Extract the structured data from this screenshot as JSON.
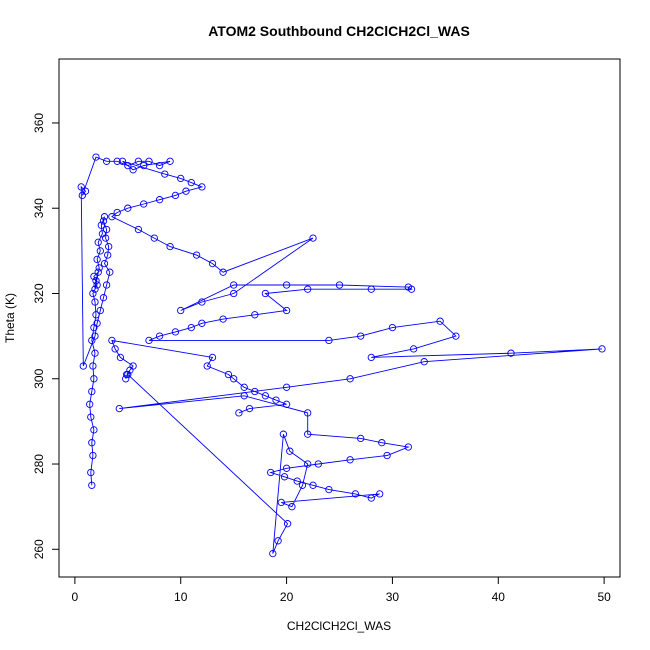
{
  "chart_data": {
    "type": "line",
    "title": "ATOM2 Southbound CH2ClCH2Cl_WAS",
    "xlabel": "CH2ClCH2Cl_WAS",
    "ylabel": "Theta (K)",
    "xlim": [
      -1.5,
      51.5
    ],
    "ylim": [
      253.5,
      375
    ],
    "xticks": [
      0,
      10,
      20,
      30,
      40,
      50
    ],
    "yticks": [
      260,
      280,
      300,
      320,
      340,
      360
    ],
    "xtick_labels": [
      "0",
      "10",
      "20",
      "30",
      "40",
      "50"
    ],
    "ytick_labels": [
      "260",
      "280",
      "300",
      "320",
      "340",
      "360"
    ],
    "grid": false,
    "series_color": "#0000ff",
    "marker": "open-circle",
    "series": [
      {
        "name": "ATOM2 Southbound",
        "x": [
          1.6,
          1.5,
          1.7,
          1.6,
          1.8,
          1.5,
          1.4,
          1.6,
          1.8,
          1.7,
          1.9,
          1.6,
          1.8,
          2.0,
          1.9,
          1.7,
          2.1,
          1.8,
          2.2,
          2.0,
          1.9,
          2.3,
          2.1,
          2.4,
          2.2,
          2.6,
          2.5,
          2.8,
          2.7,
          3.0,
          2.9,
          3.2,
          3.1,
          2.8,
          3.3,
          3.0,
          2.7,
          2.4,
          2.1,
          1.9,
          0.8,
          0.6,
          1.0,
          0.7,
          2.0,
          3.0,
          4.0,
          5.0,
          6.0,
          7.0,
          8.0,
          9.0,
          6.5,
          5.5,
          4.5,
          8.5,
          10.0,
          11.0,
          12.0,
          10.5,
          9.5,
          8.0,
          6.5,
          5.0,
          4.0,
          3.5,
          6.0,
          7.5,
          9.0,
          11.5,
          13.0,
          14.0,
          22.5,
          15.0,
          12.0,
          10.0,
          15.0,
          20.0,
          25.0,
          31.5,
          31.8,
          28.0,
          22.0,
          18.0,
          20.0,
          17.0,
          14.0,
          12.0,
          11.0,
          9.5,
          8.0,
          7.0,
          24.0,
          27.0,
          30.0,
          34.5,
          36.0,
          32.0,
          28.0,
          41.2,
          49.8,
          33.0,
          26.0,
          20.0,
          4.2,
          16.0,
          22.0,
          22.0,
          27.0,
          29.0,
          31.5,
          29.5,
          26.0,
          23.0,
          20.0,
          18.5,
          19.8,
          21.0,
          22.5,
          24.0,
          26.5,
          28.0,
          28.8,
          19.5,
          20.5,
          21.5,
          22.0,
          20.3,
          19.7,
          18.7,
          19.2,
          20.1,
          5.0,
          4.8,
          5.2,
          4.9,
          5.5,
          4.3,
          3.8,
          3.5,
          13.0,
          12.5,
          14.5,
          15.0,
          16.0,
          17.0,
          18.0,
          19.0,
          20.0,
          16.5,
          15.5
        ],
        "y": [
          275,
          278,
          282,
          285,
          288,
          291,
          294,
          297,
          300,
          303,
          306,
          309,
          312,
          315,
          318,
          320,
          322,
          324,
          325,
          323,
          321,
          326,
          328,
          330,
          332,
          334,
          336,
          338,
          337,
          335,
          333,
          331,
          329,
          327,
          325,
          322,
          319,
          316,
          313,
          310,
          303,
          345,
          344,
          343,
          352,
          351,
          351,
          350,
          351,
          351,
          350,
          351,
          350,
          349,
          351,
          348,
          347,
          346,
          345,
          344,
          343,
          342,
          341,
          340,
          339,
          338,
          335,
          333,
          331,
          329,
          327,
          325,
          333,
          320,
          318,
          316,
          322,
          322,
          322,
          321.5,
          321,
          321,
          321,
          320,
          316,
          315,
          314,
          313,
          312,
          311,
          310,
          309,
          309,
          310,
          312,
          313.5,
          310,
          307,
          305,
          306,
          307,
          304,
          300,
          298,
          293,
          296,
          292,
          287,
          286,
          285,
          284,
          282,
          281,
          280,
          279,
          278,
          277,
          276,
          275,
          274,
          273,
          272,
          273,
          271,
          270,
          275,
          280,
          283,
          287,
          259,
          262,
          266,
          301,
          300,
          302,
          301,
          303,
          305,
          307,
          309,
          305,
          303,
          301,
          300,
          298,
          297,
          296,
          295,
          294,
          293,
          292
        ]
      }
    ]
  }
}
